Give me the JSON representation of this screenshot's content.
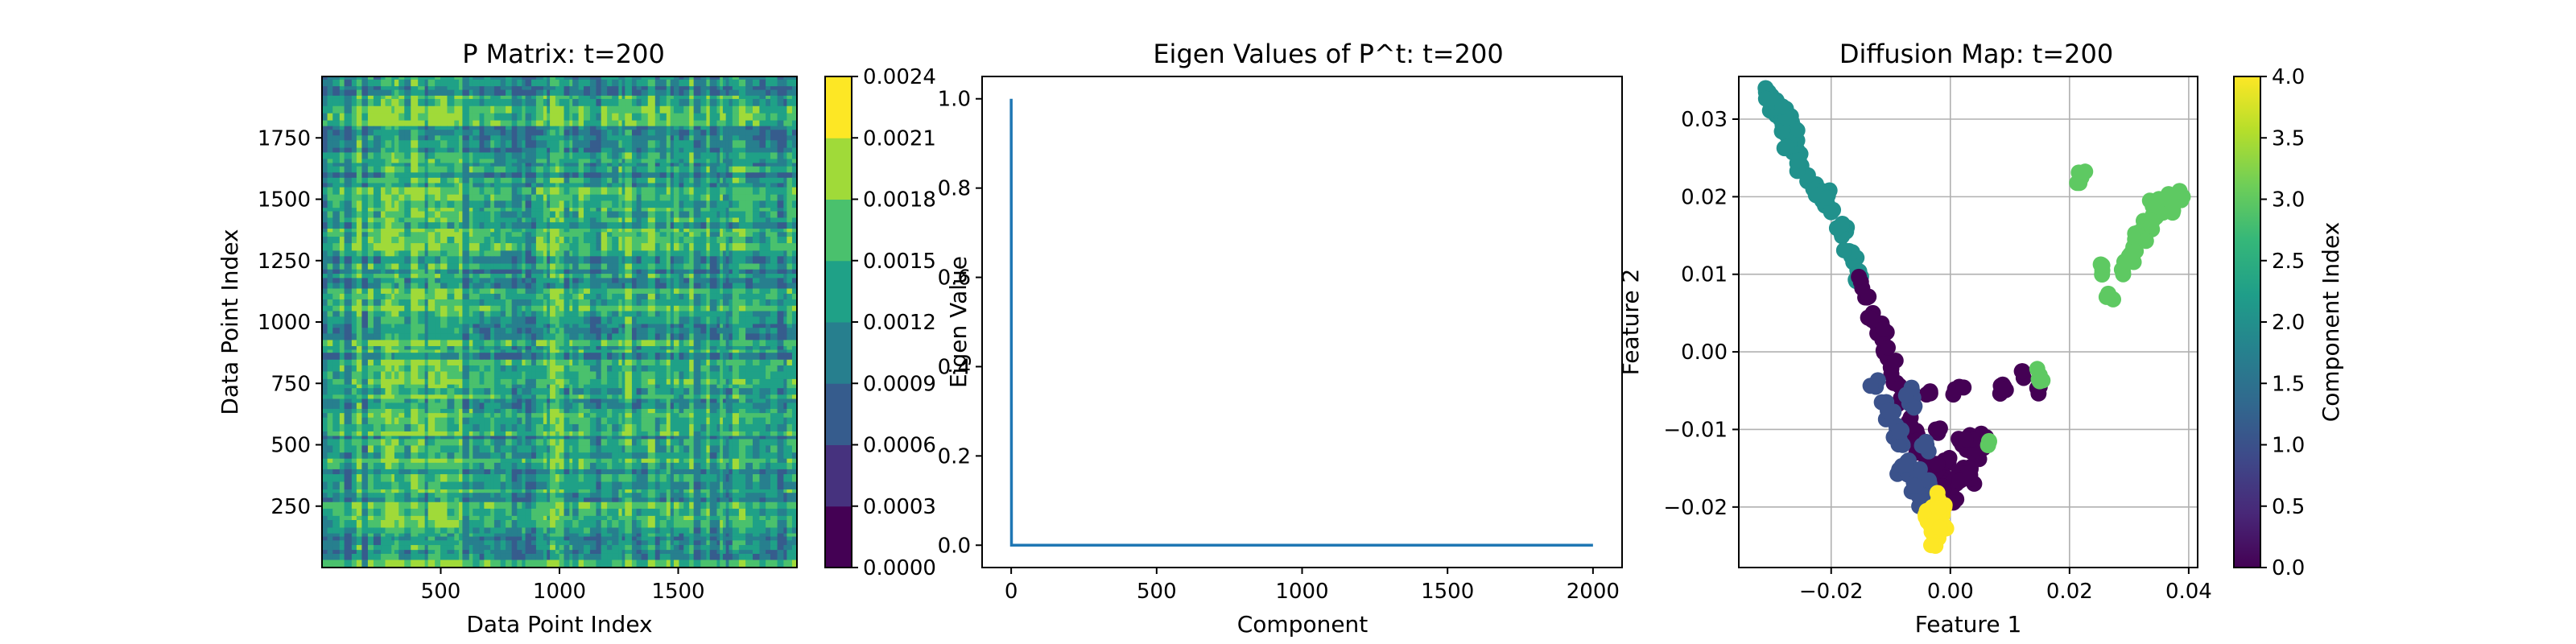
{
  "chart_data": [
    {
      "type": "heatmap",
      "title": "P Matrix: t=200",
      "xlabel": "Data Point Index",
      "ylabel": "Data Point Index",
      "x_ticks": [
        "500",
        "1000",
        "1500"
      ],
      "y_ticks": [
        "250",
        "500",
        "750",
        "1000",
        "1250",
        "1500",
        "1750"
      ],
      "xlim": [
        0,
        2000
      ],
      "ylim": [
        0,
        2000
      ],
      "colorbar_ticks": [
        "0.0000",
        "0.0003",
        "0.0006",
        "0.0009",
        "0.0012",
        "0.0015",
        "0.0018",
        "0.0021",
        "0.0024"
      ],
      "colorbar_range": [
        0,
        0.0024
      ],
      "colormap_levels": [
        "#440154",
        "#46327e",
        "#365c8d",
        "#277f8e",
        "#1fa187",
        "#4ac16d",
        "#a0da39",
        "#fde725"
      ],
      "dominant_levels": [
        2,
        3,
        4,
        5,
        6
      ],
      "note": "Dense striped pattern of P matrix values for 2000 data points"
    },
    {
      "type": "line",
      "title": "Eigen Values of P^t: t=200",
      "xlabel": "Component",
      "ylabel": "Eigen Value",
      "x_ticks": [
        "0",
        "500",
        "1000",
        "1500",
        "2000"
      ],
      "y_ticks": [
        "0.0",
        "0.2",
        "0.4",
        "0.6",
        "0.8",
        "1.0"
      ],
      "xlim": [
        -100,
        2100
      ],
      "ylim": [
        -0.05,
        1.05
      ],
      "series": [
        {
          "color": "#1f77b4",
          "x": [
            0,
            1,
            2,
            500,
            1000,
            1500,
            2000
          ],
          "y": [
            1.0,
            0.0,
            0.0,
            0.0,
            0.0,
            0.0,
            0.0
          ]
        }
      ]
    },
    {
      "type": "scatter",
      "title": "Diffusion Map: t=200",
      "xlabel": "Feature 1",
      "ylabel": "Feature 2",
      "x_ticks": [
        "−0.02",
        "0.00",
        "0.02",
        "0.04"
      ],
      "y_ticks": [
        "−0.02",
        "−0.01",
        "0.00",
        "0.01",
        "0.02",
        "0.03"
      ],
      "xlim": [
        -0.0355,
        0.0415
      ],
      "ylim": [
        -0.0278,
        0.0355
      ],
      "grid": true,
      "colorbar_label": "Component Index",
      "colorbar_ticks": [
        "0.0",
        "0.5",
        "1.0",
        "1.5",
        "2.0",
        "2.5",
        "3.0",
        "3.5",
        "4.0"
      ],
      "colorbar_range": [
        0,
        4
      ],
      "class_colors": [
        "#440154",
        "#3b528b",
        "#21918c",
        "#5ec962",
        "#fde725"
      ],
      "clusters": [
        {
          "component": 2,
          "points": [
            [
              -0.031,
              0.034
            ],
            [
              -0.0305,
              0.0335
            ],
            [
              -0.03,
              0.033
            ],
            [
              -0.0295,
              0.032
            ],
            [
              -0.029,
              0.031
            ],
            [
              -0.0285,
              0.03
            ],
            [
              -0.028,
              0.029
            ],
            [
              -0.0275,
              0.028
            ],
            [
              -0.027,
              0.027
            ],
            [
              -0.026,
              0.026
            ],
            [
              -0.025,
              0.024
            ],
            [
              -0.024,
              0.022
            ],
            [
              -0.023,
              0.021
            ],
            [
              -0.021,
              0.02
            ],
            [
              -0.02,
              0.018
            ],
            [
              -0.0185,
              0.016
            ],
            [
              -0.017,
              0.013
            ],
            [
              -0.016,
              0.012
            ],
            [
              -0.0155,
              0.01
            ],
            [
              -0.028,
              0.031
            ],
            [
              -0.027,
              0.0305
            ],
            [
              -0.0265,
              0.028
            ],
            [
              -0.0215,
              0.0195
            ],
            [
              -0.0175,
              0.0155
            ]
          ]
        },
        {
          "component": 0,
          "points": [
            [
              -0.015,
              0.009
            ],
            [
              -0.014,
              0.007
            ],
            [
              -0.013,
              0.005
            ],
            [
              -0.012,
              0.003
            ],
            [
              -0.0115,
              0.002
            ],
            [
              -0.011,
              0.0
            ],
            [
              -0.01,
              -0.002
            ],
            [
              -0.009,
              -0.004
            ],
            [
              -0.008,
              -0.006
            ],
            [
              -0.007,
              -0.009
            ],
            [
              -0.006,
              -0.011
            ],
            [
              -0.005,
              -0.013
            ],
            [
              -0.004,
              -0.014
            ],
            [
              -0.003,
              -0.015
            ],
            [
              -0.002,
              -0.016
            ],
            [
              -0.001,
              -0.017
            ],
            [
              0.0,
              -0.018
            ],
            [
              0.001,
              -0.017
            ],
            [
              0.002,
              -0.016
            ],
            [
              0.003,
              -0.015
            ],
            [
              0.004,
              -0.013
            ],
            [
              0.005,
              -0.012
            ],
            [
              0.006,
              -0.011
            ],
            [
              0.003,
              -0.011
            ],
            [
              0.0005,
              -0.0055
            ],
            [
              0.0015,
              -0.0045
            ],
            [
              0.009,
              -0.0045
            ],
            [
              0.012,
              -0.0025
            ],
            [
              0.015,
              -0.0045
            ],
            [
              -0.004,
              -0.0055
            ],
            [
              -0.002,
              -0.01
            ],
            [
              0.002,
              -0.012
            ],
            [
              -0.001,
              -0.014
            ],
            [
              0.001,
              -0.019
            ],
            [
              0.004,
              -0.017
            ]
          ]
        },
        {
          "component": 1,
          "points": [
            [
              -0.0125,
              -0.0045
            ],
            [
              -0.0115,
              -0.0065
            ],
            [
              -0.01,
              -0.008
            ],
            [
              -0.009,
              -0.01
            ],
            [
              -0.008,
              -0.012
            ],
            [
              -0.007,
              -0.014
            ],
            [
              -0.006,
              -0.016
            ],
            [
              -0.0055,
              -0.017
            ],
            [
              -0.005,
              -0.018
            ],
            [
              -0.0045,
              -0.019
            ],
            [
              -0.007,
              -0.0055
            ],
            [
              -0.006,
              -0.007
            ],
            [
              -0.008,
              -0.015
            ],
            [
              -0.0065,
              -0.018
            ],
            [
              -0.004,
              -0.012
            ],
            [
              -0.0035,
              -0.017
            ],
            [
              -0.0095,
              -0.011
            ]
          ]
        },
        {
          "component": 4,
          "points": [
            [
              -0.003,
              -0.02
            ],
            [
              -0.0025,
              -0.021
            ],
            [
              -0.002,
              -0.022
            ],
            [
              -0.0015,
              -0.023
            ],
            [
              -0.002,
              -0.024
            ],
            [
              -0.0025,
              -0.025
            ],
            [
              -0.004,
              -0.021
            ],
            [
              -0.0035,
              -0.022
            ],
            [
              -0.003,
              -0.023
            ],
            [
              -0.001,
              -0.02
            ],
            [
              -0.0015,
              -0.021
            ],
            [
              -0.002,
              -0.019
            ]
          ]
        },
        {
          "component": 3,
          "points": [
            [
              0.022,
              0.0225
            ],
            [
              0.0255,
              0.0105
            ],
            [
              0.0265,
              0.0075
            ],
            [
              0.029,
              0.01
            ],
            [
              0.03,
              0.012
            ],
            [
              0.031,
              0.013
            ],
            [
              0.032,
              0.015
            ],
            [
              0.033,
              0.016
            ],
            [
              0.034,
              0.017
            ],
            [
              0.035,
              0.018
            ],
            [
              0.036,
              0.019
            ],
            [
              0.037,
              0.0195
            ],
            [
              0.038,
              0.02
            ],
            [
              0.039,
              0.02
            ],
            [
              0.0335,
              0.0195
            ],
            [
              0.035,
              0.0195
            ],
            [
              0.0365,
              0.0185
            ],
            [
              0.031,
              0.0145
            ],
            [
              0.015,
              -0.003
            ],
            [
              0.0065,
              -0.0115
            ]
          ]
        }
      ]
    }
  ]
}
